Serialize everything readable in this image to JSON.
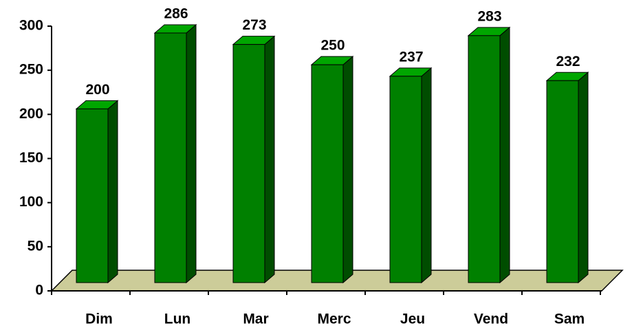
{
  "chart_data": {
    "type": "bar3d",
    "categories": [
      "Dim",
      "Lun",
      "Mar",
      "Merc",
      "Jeu",
      "Vend",
      "Sam"
    ],
    "values": [
      200,
      286,
      273,
      250,
      237,
      283,
      232
    ],
    "color": "#008000",
    "ylim": [
      0,
      300
    ],
    "yticks": [
      0,
      50,
      100,
      150,
      200,
      250,
      300
    ]
  }
}
